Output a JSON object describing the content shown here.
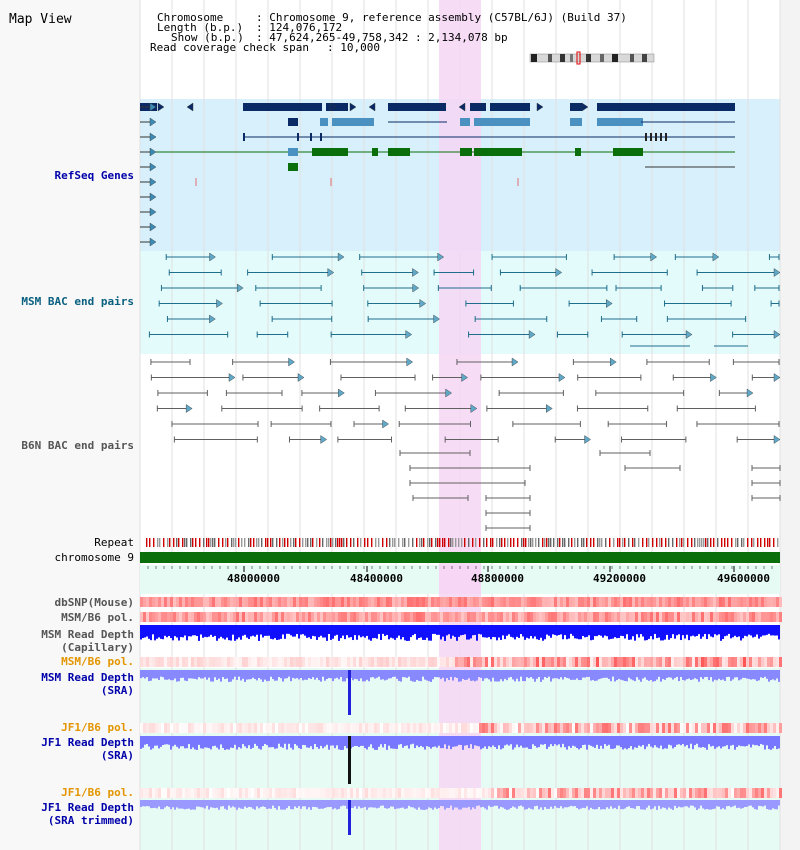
{
  "title": "Map View",
  "info": {
    "chromosome_label": "Chromosome",
    "chromosome_value": ": Chromosome 9, reference assembly (C57BL/6J) (Build 37)",
    "length_label": "Length (b.p.)",
    "length_value": ": 124,076,172",
    "show_label": "Show (b.p.)",
    "show_value": ": 47,624,265-49,758,342 : 2,134,078 bp",
    "coverage_label": "Read coverage check span",
    "coverage_value": ": 10,000"
  },
  "tracks": {
    "refseq": "RefSeq Genes",
    "msm_bac": "MSM BAC end pairs",
    "b6n_bac": "B6N BAC end pairs",
    "repeat": "Repeat",
    "chromosome": "chromosome 9",
    "dbsnp": "dbSNP(Mouse)",
    "msm_b6_pol_1": "MSM/B6 pol.",
    "msm_depth_cap_1": "MSM Read Depth",
    "msm_depth_cap_2": "(Capillary)",
    "msm_b6_pol_2": "MSM/B6 pol.",
    "msm_depth_sra_1": "MSM Read Depth",
    "msm_depth_sra_2": "(SRA)",
    "jf1_b6_pol_1": "JF1/B6 pol.",
    "jf1_depth_sra_1": "JF1 Read Depth",
    "jf1_depth_sra_2": "(SRA)",
    "jf1_b6_pol_2": "JF1/B6 pol.",
    "jf1_depth_trim_1": "JF1 Read Depth",
    "jf1_depth_trim_2": "(SRA trimmed)"
  },
  "axis_ticks": [
    "48000000",
    "48400000",
    "48800000",
    "49200000",
    "49600000"
  ],
  "colors": {
    "navy": "#0a2a66",
    "steel": "#4a90c0",
    "green": "#0a6e0a",
    "teal": "#1f6e8c",
    "gray": "#606060",
    "highlight": "#f6d6f4",
    "label_blue": "#0000aa",
    "label_teal": "#0a6080",
    "label_orange": "#e39500",
    "label_gray": "#555555"
  }
}
